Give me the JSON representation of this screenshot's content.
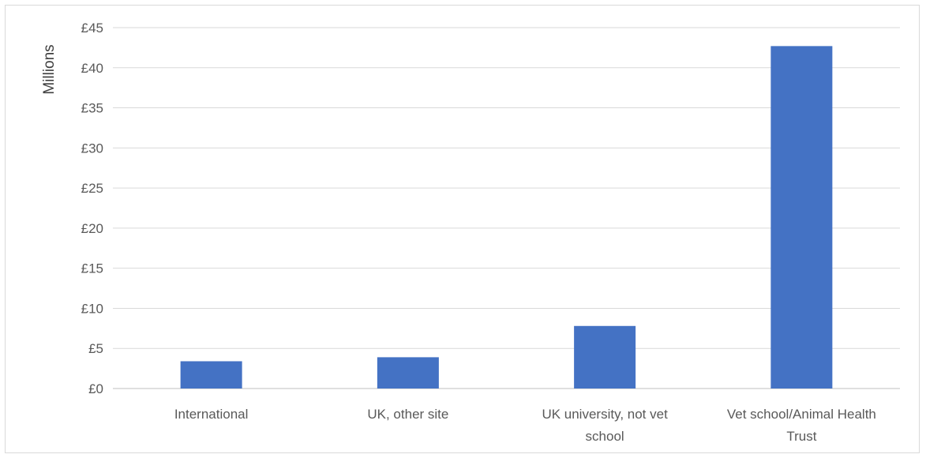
{
  "chart_data": {
    "type": "bar",
    "categories": [
      [
        "International"
      ],
      [
        "UK, other site"
      ],
      [
        "UK university, not vet",
        "school"
      ],
      [
        "Vet school/Animal Health",
        "Trust"
      ]
    ],
    "values": [
      3.4,
      3.9,
      7.8,
      42.7
    ],
    "ylabel": "Millions",
    "ylim": [
      0,
      45
    ],
    "yticks": [
      0,
      5,
      10,
      15,
      20,
      25,
      30,
      35,
      40,
      45
    ],
    "ytick_labels": [
      "£0",
      "£5",
      "£10",
      "£15",
      "£20",
      "£25",
      "£30",
      "£35",
      "£40",
      "£45"
    ],
    "grid": true,
    "bar_color": "#4472c4",
    "grid_color": "#d9d9d9"
  }
}
